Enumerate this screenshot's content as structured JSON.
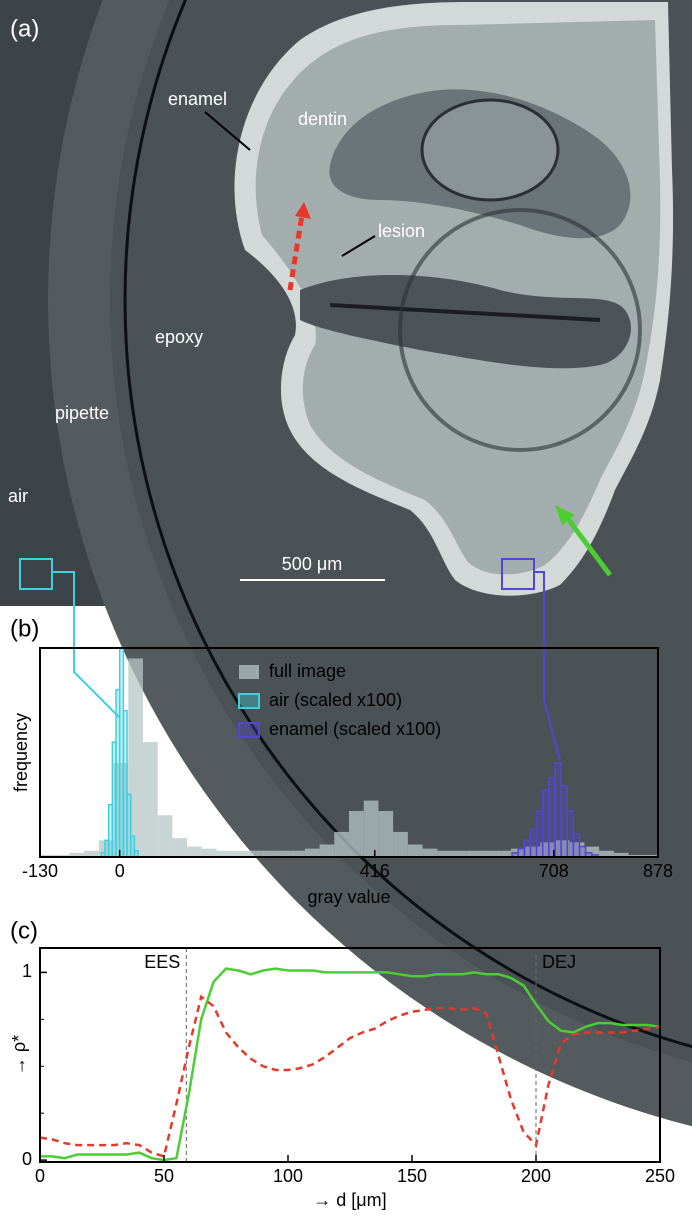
{
  "figure": {
    "panel_label": "(a)",
    "labels": [
      "enamel",
      "dentin",
      "lesion",
      "epoxy",
      "pipette",
      "air"
    ],
    "scale_bar": "500 μm"
  },
  "chart_data": [
    {
      "type": "histogram",
      "panel_label": "(b)",
      "xlabel": "gray value",
      "ylabel": "frequency",
      "xlim": [
        -130,
        878
      ],
      "xticks": [
        -130,
        0,
        416,
        708,
        878
      ],
      "ylim": [
        0,
        100
      ],
      "legend": "upper center",
      "series": [
        {
          "name": "full image",
          "color": "#b7c6c6",
          "bins": [
            -130,
            -106,
            -82,
            -58,
            -34,
            -10,
            14,
            38,
            62,
            86,
            110,
            134,
            158,
            182,
            206,
            230,
            254,
            278,
            302,
            326,
            350,
            374,
            398,
            422,
            446,
            470,
            494,
            518,
            542,
            566,
            590,
            614,
            638,
            662,
            686,
            710,
            734,
            758,
            782,
            806,
            830,
            854,
            878
          ],
          "values": [
            1,
            1,
            2,
            3,
            8,
            45,
            95,
            55,
            20,
            9,
            5,
            4,
            3,
            3,
            3,
            3,
            3,
            3,
            4,
            6,
            12,
            22,
            27,
            22,
            12,
            6,
            4,
            3,
            3,
            3,
            3,
            3,
            4,
            5,
            7,
            8,
            7,
            5,
            3,
            2,
            1,
            1
          ]
        },
        {
          "name": "air (scaled x100)",
          "color": "#3fd0e0",
          "bins": [
            -30,
            -24,
            -18,
            -12,
            -6,
            0,
            6,
            12,
            18,
            24,
            30
          ],
          "values": [
            2,
            8,
            25,
            55,
            80,
            100,
            70,
            30,
            10,
            3
          ]
        },
        {
          "name": "enamel (scaled x100)",
          "color": "#5546d2",
          "bins": [
            640,
            650,
            660,
            670,
            680,
            690,
            700,
            710,
            720,
            730,
            740,
            750,
            760,
            770,
            780
          ],
          "values": [
            2,
            4,
            8,
            13,
            22,
            32,
            38,
            45,
            34,
            22,
            11,
            5,
            2,
            1
          ]
        }
      ]
    },
    {
      "type": "line",
      "panel_label": "(c)",
      "xlabel": "→ d [μm]",
      "ylabel": "→ ρ*",
      "xlim": [
        0,
        250
      ],
      "xticks": [
        0,
        50,
        100,
        150,
        200,
        250
      ],
      "ylim": [
        -0.01,
        1.13
      ],
      "yticks": [
        0,
        1
      ],
      "yminorticks": [
        0.25,
        0.5,
        0.75
      ],
      "x": [
        0,
        5,
        10,
        15,
        20,
        25,
        30,
        35,
        40,
        45,
        50,
        55,
        60,
        65,
        70,
        75,
        80,
        85,
        90,
        95,
        100,
        105,
        110,
        115,
        120,
        125,
        130,
        135,
        140,
        145,
        150,
        155,
        160,
        165,
        170,
        175,
        180,
        185,
        190,
        195,
        200,
        205,
        210,
        215,
        220,
        225,
        230,
        235,
        240,
        245,
        250
      ],
      "series": [
        {
          "color": "#4ccd34",
          "values": [
            0.02,
            0.02,
            0.01,
            0.03,
            0.03,
            0.03,
            0.03,
            0.03,
            0.04,
            0.01,
            0,
            0.01,
            0.35,
            0.75,
            0.95,
            1.02,
            1.01,
            0.99,
            1.01,
            1.02,
            1.01,
            1.01,
            1.01,
            1.0,
            1.0,
            1.0,
            1.0,
            1.0,
            1.0,
            0.99,
            0.98,
            0.98,
            0.99,
            0.99,
            0.99,
            1.0,
            0.99,
            0.99,
            0.97,
            0.93,
            0.83,
            0.74,
            0.69,
            0.68,
            0.71,
            0.73,
            0.73,
            0.72,
            0.72,
            0.72,
            0.71
          ]
        },
        {
          "color": "#e8382a",
          "dash": true,
          "values": [
            0.12,
            0.11,
            0.09,
            0.08,
            0.08,
            0.08,
            0.08,
            0.09,
            0.08,
            0.04,
            0.02,
            0.3,
            0.6,
            0.87,
            0.82,
            0.68,
            0.6,
            0.54,
            0.5,
            0.48,
            0.48,
            0.49,
            0.51,
            0.55,
            0.6,
            0.65,
            0.68,
            0.7,
            0.74,
            0.77,
            0.79,
            0.8,
            0.81,
            0.81,
            0.8,
            0.81,
            0.78,
            0.55,
            0.32,
            0.15,
            0.08,
            0.4,
            0.62,
            0.67,
            0.68,
            0.68,
            0.68,
            0.68,
            0.69,
            0.7,
            0.71
          ]
        }
      ],
      "annotations": [
        {
          "x": 59,
          "label": "EES"
        },
        {
          "x": 200,
          "label": "DEJ"
        }
      ]
    }
  ]
}
